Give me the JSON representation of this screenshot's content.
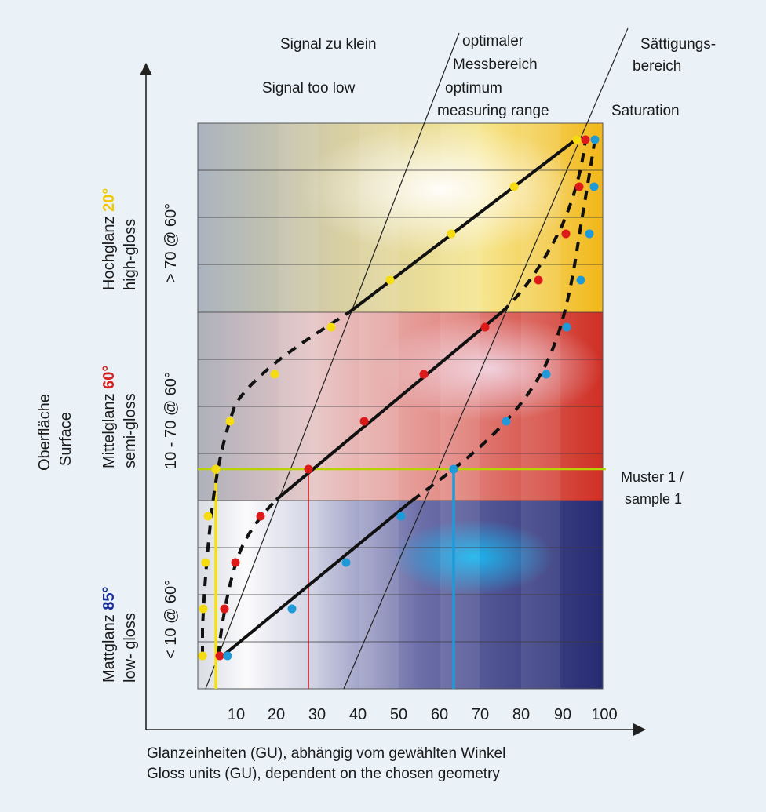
{
  "header": {
    "low_de": "Signal zu klein",
    "low_en": "Signal too low",
    "opt_de_1": "optimaler",
    "opt_de_2": "Messbereich",
    "opt_en_1": "optimum",
    "opt_en_2": "measuring range",
    "sat_de_1": "Sättigungs-",
    "sat_de_2": "bereich",
    "sat_en": "Saturation"
  },
  "y_axis_title": {
    "de": "Oberfläche",
    "en": "Surface"
  },
  "bands": {
    "high": {
      "de": "Hochglanz",
      "angle": "20°",
      "en": "high-gloss",
      "range": "> 70 @ 60°",
      "angle_color": "#f2c800"
    },
    "semi": {
      "de": "Mittelglanz",
      "angle": "60°",
      "en": "semi-gloss",
      "range": "10 - 70 @ 60°",
      "angle_color": "#d42020"
    },
    "low": {
      "de": "Mattglanz",
      "angle": "85°",
      "en": "low- gloss",
      "range": "< 10 @ 60°",
      "angle_color": "#1a2f9a"
    }
  },
  "x_axis": {
    "ticks": [
      "10",
      "20",
      "30",
      "40",
      "50",
      "60",
      "70",
      "80",
      "90",
      "100"
    ],
    "label_de": "Glanzeinheiten (GU), abhängig vom gewählten Winkel",
    "label_en": "Gloss units (GU), dependent on the chosen geometry"
  },
  "sample": {
    "label_1": "Muster 1 /",
    "label_2": "sample 1",
    "line_color": "#b8d400"
  },
  "colors": {
    "yellow": "#f5dc10",
    "red": "#dc1a1a",
    "blue": "#1e9ad8",
    "curve": "#111111"
  }
}
